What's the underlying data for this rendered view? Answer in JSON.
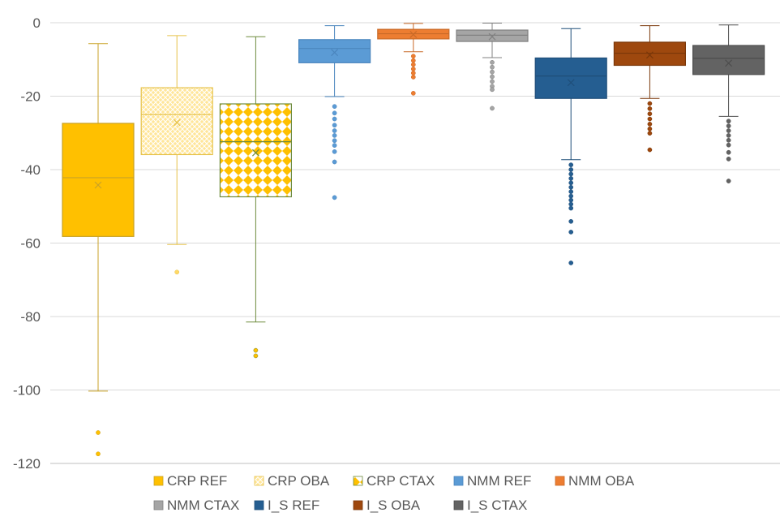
{
  "chart_data": {
    "type": "box",
    "title": "",
    "xlabel": "",
    "ylabel": "",
    "ylim": [
      -120,
      0
    ],
    "yticks": [
      0,
      -20,
      -40,
      -60,
      -80,
      -100,
      -120
    ],
    "grid": "horizontal",
    "legend_position": "bottom",
    "series": [
      {
        "name": "CRP REF",
        "color": "#FFC000",
        "fill": "solid",
        "stroke": "#C9A227",
        "min": -100.3,
        "q1": -58.2,
        "median": -42.2,
        "q3": -27.4,
        "max": -5.7,
        "mean": -44.2,
        "outliers": [
          -111.6,
          -117.4
        ]
      },
      {
        "name": "CRP OBA",
        "color": "#FFD966",
        "fill": "crosshatch",
        "stroke": "#E6C24A",
        "min": -60.4,
        "q1": -35.9,
        "median": -25.0,
        "q3": -17.7,
        "max": -3.5,
        "mean": -27.2,
        "outliers": [
          -67.9
        ]
      },
      {
        "name": "CRP CTAX",
        "color": "#FFC000",
        "fill": "checker",
        "stroke": "#6E8B3D",
        "min": -81.5,
        "q1": -47.4,
        "median": -32.4,
        "q3": -22.1,
        "max": -3.8,
        "mean": -35.4,
        "outliers": [
          -89.2,
          -90.7
        ]
      },
      {
        "name": "NMM REF",
        "color": "#5B9BD5",
        "fill": "solid",
        "stroke": "#4A85BD",
        "min": -20.1,
        "q1": -10.9,
        "median": -7.0,
        "q3": -4.6,
        "max": -0.8,
        "mean": -8.1,
        "outliers": [
          -22.8,
          -24.6,
          -26.2,
          -27.9,
          -29.4,
          -30.7,
          -32.1,
          -33.4,
          -35.1,
          -37.9,
          -47.6
        ]
      },
      {
        "name": "NMM OBA",
        "color": "#ED7D31",
        "fill": "solid",
        "stroke": "#C96A28",
        "min": -7.9,
        "q1": -4.4,
        "median": -3.0,
        "q3": -1.8,
        "max": -0.2,
        "mean": -3.2,
        "outliers": [
          -9.1,
          -10.3,
          -11.4,
          -12.6,
          -13.7,
          -14.8,
          -19.2
        ]
      },
      {
        "name": "NMM CTAX",
        "color": "#A5A5A5",
        "fill": "solid",
        "stroke": "#808080",
        "min": -9.5,
        "q1": -5.1,
        "median": -3.4,
        "q3": -2.0,
        "max": -0.1,
        "mean": -3.8,
        "outliers": [
          -10.8,
          -12.1,
          -13.4,
          -14.7,
          -16.0,
          -17.3,
          -18.2,
          -23.3
        ]
      },
      {
        "name": "I_S REF",
        "color": "#255E91",
        "fill": "solid",
        "stroke": "#1F4E79",
        "min": -37.3,
        "q1": -20.6,
        "median": -14.5,
        "q3": -9.6,
        "max": -1.6,
        "mean": -16.3,
        "outliers": [
          -38.7,
          -40.0,
          -41.2,
          -42.4,
          -43.6,
          -44.8,
          -46.0,
          -47.2,
          -48.3,
          -49.4,
          -50.5,
          -54.1,
          -57.0,
          -65.4
        ]
      },
      {
        "name": "I_S OBA",
        "color": "#9E480E",
        "fill": "solid",
        "stroke": "#7A3709",
        "min": -20.6,
        "q1": -11.6,
        "median": -8.3,
        "q3": -5.3,
        "max": -0.8,
        "mean": -8.8,
        "outliers": [
          -22.0,
          -23.4,
          -24.8,
          -26.2,
          -27.6,
          -28.9,
          -30.1,
          -34.6
        ]
      },
      {
        "name": "I_S CTAX",
        "color": "#636363",
        "fill": "solid",
        "stroke": "#4D4D4D",
        "min": -25.5,
        "q1": -14.1,
        "median": -9.7,
        "q3": -6.2,
        "max": -0.6,
        "mean": -11.0,
        "outliers": [
          -26.8,
          -28.1,
          -29.4,
          -30.7,
          -32.0,
          -33.3,
          -35.3,
          -37.1,
          -43.1
        ]
      }
    ]
  }
}
